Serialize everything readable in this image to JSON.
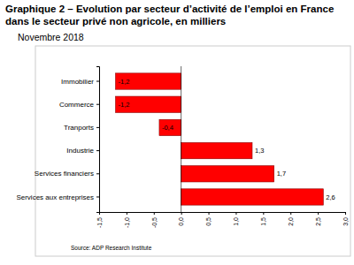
{
  "chart_data": {
    "type": "bar",
    "orientation": "horizontal",
    "title": "Graphique 2 – Evolution par secteur d’activité de l’emploi en France dans le secteur privé non agricole, en milliers",
    "subtitle": "Novembre 2018",
    "source": "Source: ADP Research Institute",
    "categories": [
      "Immobilier",
      "Commerce",
      "Tranports",
      "Industrie",
      "Services financiers",
      "Services aux entreprises"
    ],
    "values": [
      -1.2,
      -1.2,
      -0.4,
      1.3,
      1.7,
      2.6
    ],
    "value_labels": [
      "-1,2",
      "-1,2",
      "-0,4",
      "1,3",
      "1,7",
      "2,6"
    ],
    "data_labels": true,
    "color": "#ff0000",
    "grid": false,
    "xlim": [
      -1.5,
      3.0
    ],
    "xticks": [
      {
        "value": -1.5,
        "label": "-1,5"
      },
      {
        "value": -1.0,
        "label": "-1,0"
      },
      {
        "value": -0.5,
        "label": "-0,5"
      },
      {
        "value": 0.0,
        "label": "0,0"
      },
      {
        "value": 0.5,
        "label": "0,5"
      },
      {
        "value": 1.0,
        "label": "1,0"
      },
      {
        "value": 1.5,
        "label": "1,5"
      },
      {
        "value": 2.0,
        "label": "2,0"
      },
      {
        "value": 2.5,
        "label": "2,5"
      },
      {
        "value": 3.0,
        "label": "3,0"
      }
    ]
  }
}
